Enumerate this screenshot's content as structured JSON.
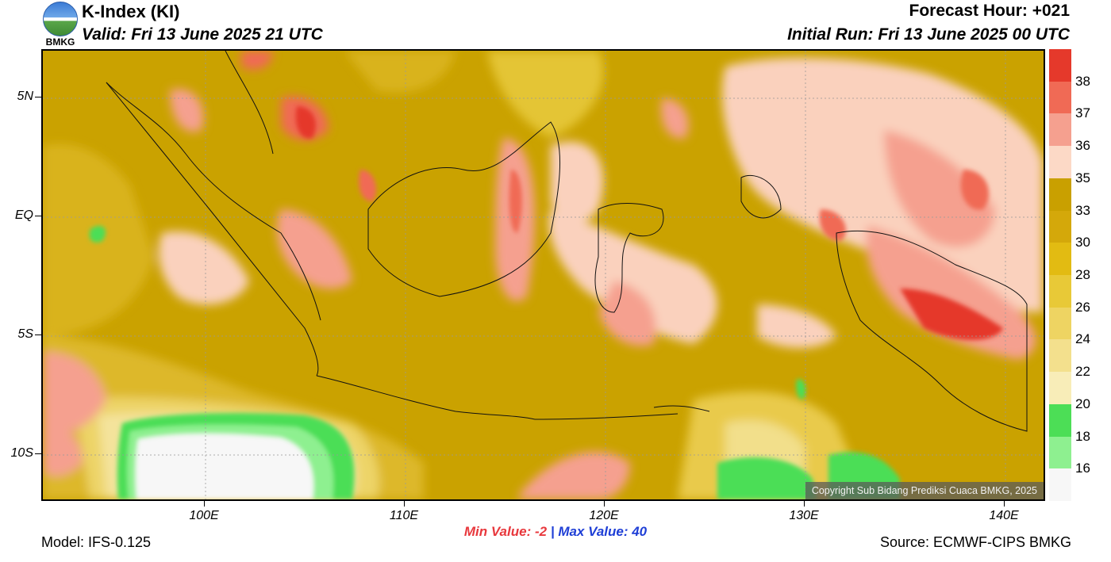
{
  "header": {
    "title": "K-Index (KI)",
    "valid": "Valid: Fri 13 June 2025 21 UTC",
    "forecast_hour": "Forecast Hour: +021",
    "initial_run": "Initial Run: Fri 13 June 2025 00 UTC"
  },
  "logo": {
    "label": "BMKG"
  },
  "map": {
    "lat_labels": [
      "5N",
      "EQ",
      "5S",
      "10S"
    ],
    "lon_labels": [
      "100E",
      "110E",
      "120E",
      "130E",
      "140E"
    ],
    "copyright": "Copyright Sub Bidang Prediksi Cuaca BMKG, 2025"
  },
  "colorbar": {
    "labels": [
      "38",
      "37",
      "36",
      "35",
      "33",
      "30",
      "28",
      "26",
      "24",
      "22",
      "20",
      "18",
      "16"
    ],
    "colors": [
      "#e5392b",
      "#f06a55",
      "#f5a08f",
      "#fcd9c6",
      "#c9a000",
      "#d4a80a",
      "#e2bb12",
      "#e8c937",
      "#eed462",
      "#f3e08d",
      "#f8edb8",
      "#4cde56",
      "#8ef090",
      "#f7f7f7"
    ]
  },
  "stats": {
    "min_label": "Min Value:  -2",
    "separator": "|",
    "max_label": "Max Value:  40"
  },
  "footer": {
    "model": "Model: IFS-0.125",
    "source": "Source: ECMWF-CIPS BMKG"
  }
}
